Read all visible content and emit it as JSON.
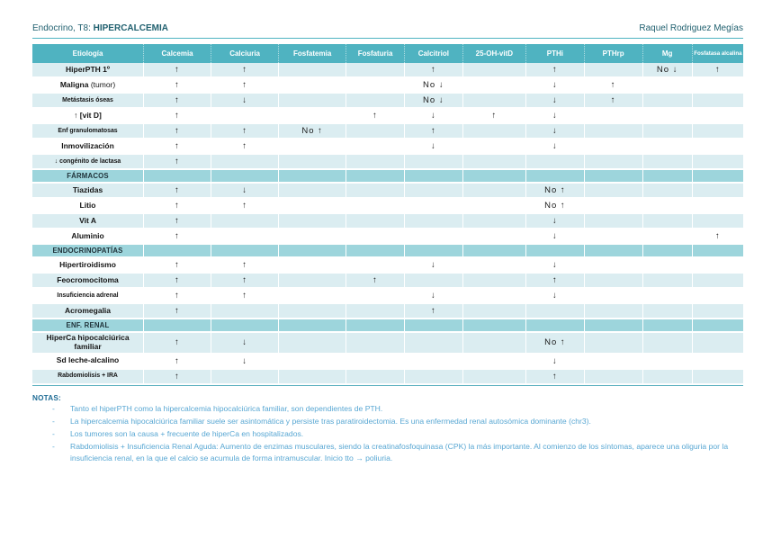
{
  "header": {
    "course_label": "Endocrino, T8: ",
    "title": "HIPERCALCEMIA",
    "author": "Raquel Rodriguez Megías"
  },
  "colors": {
    "header_teal": "#4FB3C1",
    "section_teal": "#9DD5DC",
    "row_light": "#DBEDF1",
    "title_teal": "#20606F",
    "note_blue": "#58A7D3",
    "notas_label": "#1F6C95"
  },
  "table": {
    "columns": [
      "Etiología",
      "Calcemia",
      "Calciuria",
      "Fosfatemia",
      "Fosfaturia",
      "Calcitriol",
      "25-OH-vitD",
      "PTHi",
      "PTHrp",
      "Mg",
      "Fosfatasa alcalina"
    ],
    "rows": [
      {
        "label": "HiperPTH 1º",
        "cells": [
          "↑",
          "↑",
          "",
          "",
          "↑",
          "",
          "↑",
          "",
          "No ↓",
          "↑"
        ]
      },
      {
        "label": "Maligna",
        "suffix": " (tumor)",
        "cells": [
          "↑",
          "↑",
          "",
          "",
          "No ↓",
          "",
          "↓",
          "↑",
          "",
          ""
        ]
      },
      {
        "label": "Metástasis óseas",
        "small": true,
        "cells": [
          "↑",
          "↓",
          "",
          "",
          "No ↓",
          "",
          "↓",
          "↑",
          "",
          ""
        ]
      },
      {
        "label": "↑ [vit D]",
        "cells": [
          "↑",
          "",
          "",
          "↑",
          "↓",
          "↑",
          "↓",
          "",
          "",
          ""
        ]
      },
      {
        "label": "Enf granulomatosas",
        "small": true,
        "cells": [
          "↑",
          "↑",
          "No ↑",
          "",
          "↑",
          "",
          "↓",
          "",
          "",
          ""
        ]
      },
      {
        "label": "Inmovilización",
        "cells": [
          "↑",
          "↑",
          "",
          "",
          "↓",
          "",
          "↓",
          "",
          "",
          ""
        ]
      },
      {
        "label": "↓ congénito de lactasa",
        "small": true,
        "cells": [
          "↑",
          "",
          "",
          "",
          "",
          "",
          "",
          "",
          "",
          ""
        ]
      },
      {
        "section": "FÁRMACOS"
      },
      {
        "label": "Tiazidas",
        "cells": [
          "↑",
          "↓",
          "",
          "",
          "",
          "",
          "No ↑",
          "",
          "",
          ""
        ]
      },
      {
        "label": "Litio",
        "cells": [
          "↑",
          "↑",
          "",
          "",
          "",
          "",
          "No ↑",
          "",
          "",
          ""
        ]
      },
      {
        "label": "Vit A",
        "cells": [
          "↑",
          "",
          "",
          "",
          "",
          "",
          "↓",
          "",
          "",
          ""
        ]
      },
      {
        "label": "Aluminio",
        "cells": [
          "↑",
          "",
          "",
          "",
          "",
          "",
          "↓",
          "",
          "",
          "↑"
        ]
      },
      {
        "section": "ENDOCRINOPATÍAS"
      },
      {
        "label": "Hipertiroidismo",
        "cells": [
          "↑",
          "↑",
          "",
          "",
          "↓",
          "",
          "↓",
          "",
          "",
          ""
        ]
      },
      {
        "label": "Feocromocitoma",
        "cells": [
          "↑",
          "↑",
          "",
          "↑",
          "",
          "",
          "↑",
          "",
          "",
          ""
        ]
      },
      {
        "label": "Insuficiencia adrenal",
        "small": true,
        "cells": [
          "↑",
          "↑",
          "",
          "",
          "↓",
          "",
          "↓",
          "",
          "",
          ""
        ]
      },
      {
        "label": "Acromegalia",
        "cells": [
          "↑",
          "",
          "",
          "",
          "↑",
          "",
          "",
          "",
          "",
          ""
        ]
      },
      {
        "section": "ENF. RENAL"
      },
      {
        "label": "HiperCa hipocalciúrica familiar",
        "cells": [
          "↑",
          "↓",
          "",
          "",
          "",
          "",
          "No ↑",
          "",
          "",
          ""
        ]
      },
      {
        "label": "Sd leche-alcalino",
        "cells": [
          "↑",
          "↓",
          "",
          "",
          "",
          "",
          "↓",
          "",
          "",
          ""
        ]
      },
      {
        "label": "Rabdomiolisis + IRA",
        "small": true,
        "cells": [
          "↑",
          "",
          "",
          "",
          "",
          "",
          "↑",
          "",
          "",
          ""
        ]
      }
    ]
  },
  "notes": {
    "label": "NOTAS:",
    "items": [
      "Tanto el hiperPTH como la hipercalcemia hipocalciúrica familiar, son dependientes de PTH.",
      "La hipercalcemia hipocalciúrica familiar suele ser asintomática y persiste tras paratiroidectomia. Es una enfermedad renal autosómica dominante (chr3).",
      "Los tumores son la causa + frecuente de hiperCa en hospitalizados.",
      "Rabdomiolisis + Insuficiencia Renal Aguda: Aumento de enzimas musculares, siendo la creatinafosfoquinasa (CPK) la más importante. Al comienzo de los síntomas, aparece una oliguria por la insuficiencia renal, en la que el calcio se acumula de forma intramuscular. Inicio tto → poliuria."
    ]
  }
}
